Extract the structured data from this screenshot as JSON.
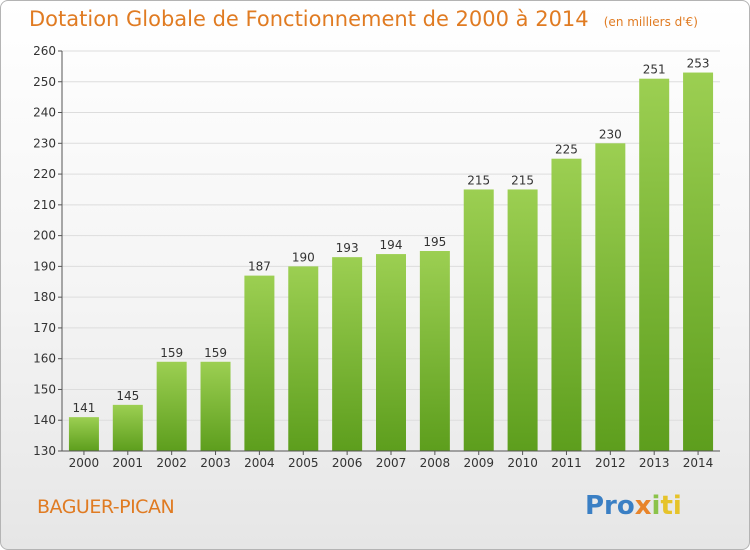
{
  "header": {
    "title": "Dotation Globale de Fonctionnement de 2000 à 2014",
    "unit": "(en milliers d'€)"
  },
  "footer": {
    "commune": "BAGUER-PICAN",
    "logo": [
      "Pro",
      "x",
      "i",
      "ti"
    ]
  },
  "colors": {
    "title": "#e07b22",
    "bar_light": "#9ccf52",
    "bar_dark": "#5d9e1d",
    "grid": "#dddddd"
  },
  "chart_data": {
    "type": "bar",
    "title": "Dotation Globale de Fonctionnement de 2000 à 2014",
    "xlabel": "",
    "ylabel": "",
    "categories": [
      "2000",
      "2001",
      "2002",
      "2003",
      "2004",
      "2005",
      "2006",
      "2007",
      "2008",
      "2009",
      "2010",
      "2011",
      "2012",
      "2013",
      "2014"
    ],
    "values": [
      141,
      145,
      159,
      159,
      187,
      190,
      193,
      194,
      195,
      215,
      215,
      225,
      230,
      251,
      253
    ],
    "ylim": [
      130,
      260
    ],
    "yticks": [
      130,
      140,
      150,
      160,
      170,
      180,
      190,
      200,
      210,
      220,
      230,
      240,
      250,
      260
    ],
    "grid": true,
    "data_labels": true
  }
}
